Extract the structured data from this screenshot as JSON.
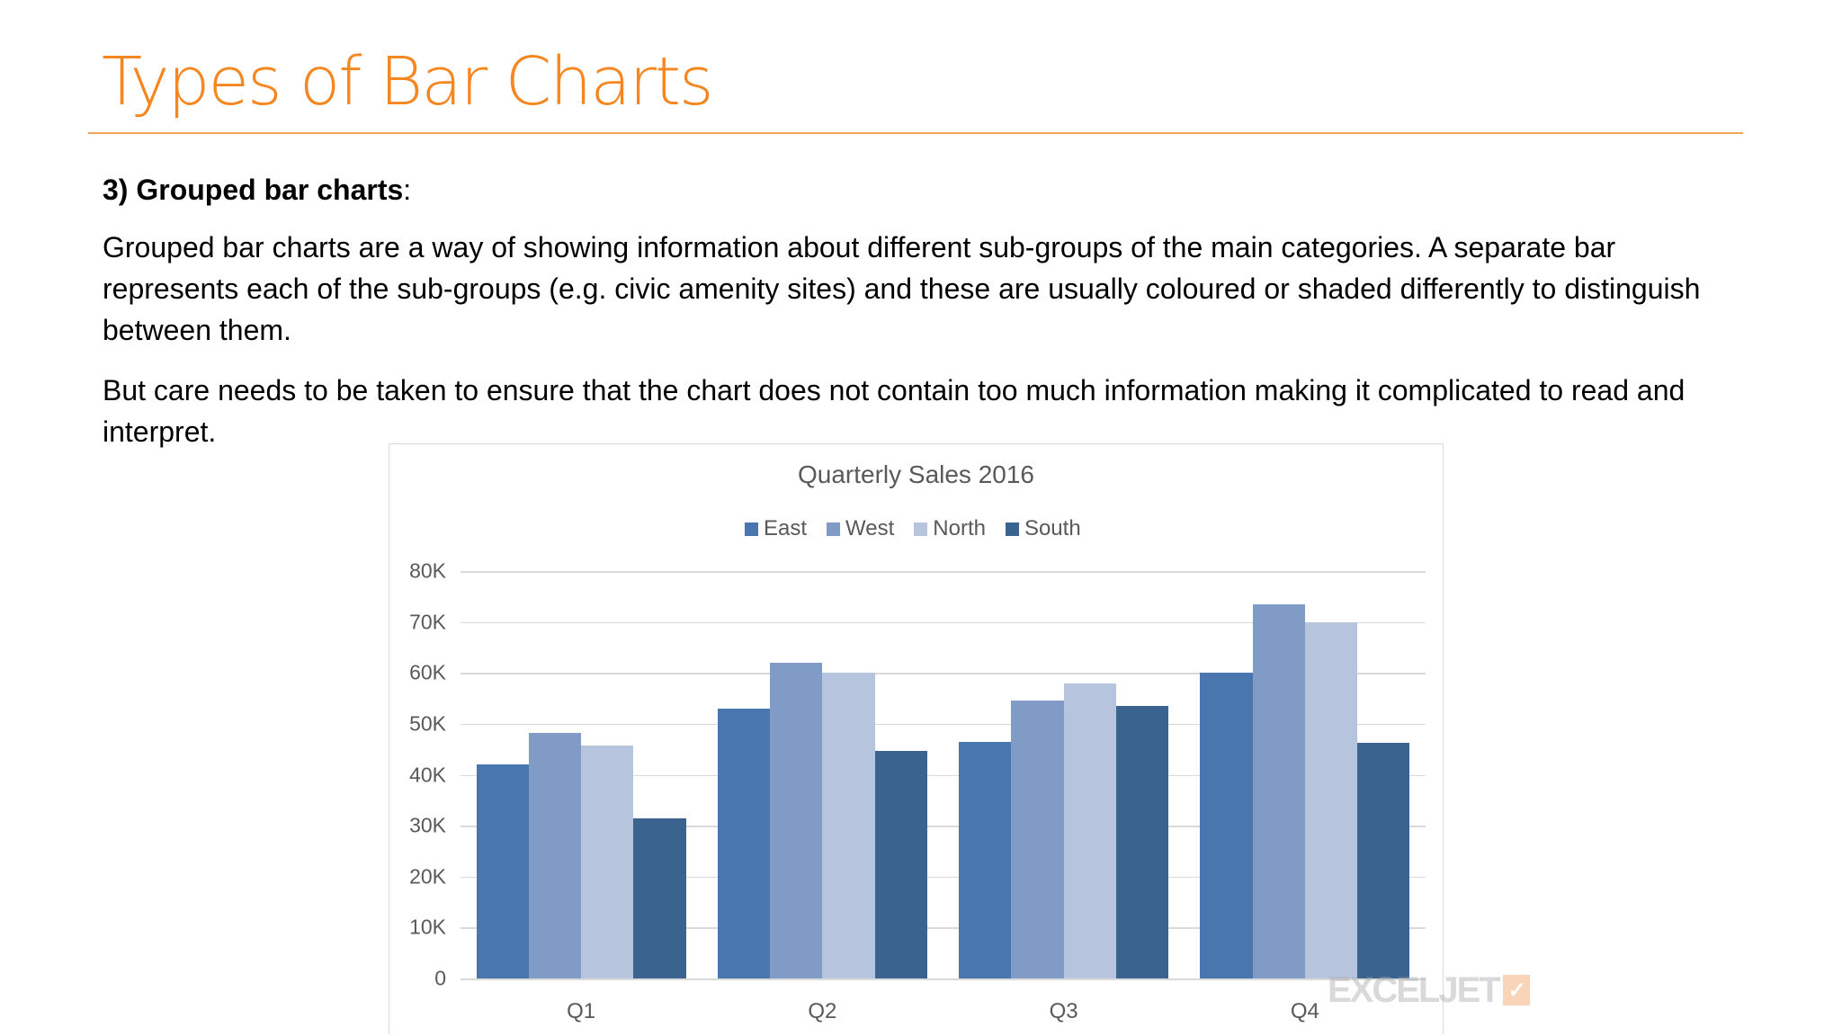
{
  "slide": {
    "title": "Types of Bar Charts",
    "heading_bold": "3) Grouped bar charts",
    "heading_suffix": ":",
    "paragraph_1": "Grouped bar charts are a way of showing information about different sub-groups of the main categories. A separate bar represents each of the sub-groups (e.g. civic amenity sites) and these are usually coloured or shaded differently to distinguish between them.",
    "paragraph_2": "But care needs to be taken to ensure that the chart does not contain too much information making it complicated to read and interpret.",
    "accent_color": "#f6861f"
  },
  "chart": {
    "title": "Quarterly Sales 2016",
    "legend": [
      {
        "label": "East",
        "color": "#4a76b0"
      },
      {
        "label": "West",
        "color": "#7f9bc6"
      },
      {
        "label": "North",
        "color": "#b7c4de"
      },
      {
        "label": "South",
        "color": "#3b6390"
      }
    ],
    "y_ticks": [
      "0",
      "10K",
      "20K",
      "30K",
      "40K",
      "50K",
      "60K",
      "70K",
      "80K"
    ],
    "x_ticks": [
      "Q1",
      "Q2",
      "Q3",
      "Q4"
    ],
    "watermark": "EXCELJET"
  },
  "chart_data": {
    "type": "bar",
    "title": "Quarterly Sales 2016",
    "categories": [
      "Q1",
      "Q2",
      "Q3",
      "Q4"
    ],
    "series": [
      {
        "name": "East",
        "values": [
          42000,
          53000,
          46500,
          60000
        ]
      },
      {
        "name": "West",
        "values": [
          48200,
          62000,
          54500,
          73500
        ]
      },
      {
        "name": "North",
        "values": [
          45800,
          60000,
          58000,
          70000
        ]
      },
      {
        "name": "South",
        "values": [
          31500,
          44700,
          53500,
          46300
        ]
      }
    ],
    "xlabel": "",
    "ylabel": "",
    "ylim": [
      0,
      80000
    ],
    "y_tick_labels": [
      "0",
      "10K",
      "20K",
      "30K",
      "40K",
      "50K",
      "60K",
      "70K",
      "80K"
    ],
    "grid": true,
    "legend_position": "top"
  }
}
